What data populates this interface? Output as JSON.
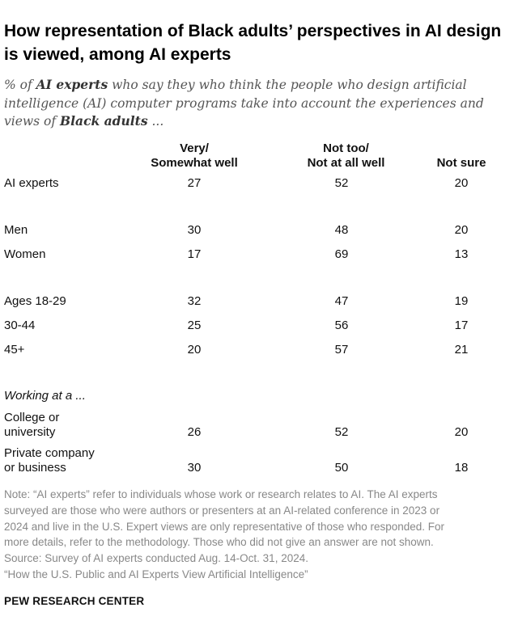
{
  "title": "How representation of Black adults’ perspectives in AI design is viewed, among AI experts",
  "subtitle": {
    "pre": "% of ",
    "bold1": "AI experts",
    "mid": " who say they who think the people who design artificial intelligence (AI) computer programs take into account the experiences and views of ",
    "bold2": "Black adults",
    "post": " ..."
  },
  "columns": {
    "col1_line1": "Very/",
    "col1_line2": "Somewhat well",
    "col2_line1": "Not too/",
    "col2_line2": "Not at all well",
    "col3": "Not sure"
  },
  "rows": {
    "all": {
      "label": "AI experts",
      "values": [
        "27",
        "52",
        "20"
      ]
    },
    "men": {
      "label": "Men",
      "values": [
        "30",
        "48",
        "20"
      ]
    },
    "women": {
      "label": "Women",
      "values": [
        "17",
        "69",
        "13"
      ]
    },
    "ages_18_29": {
      "label": "Ages 18-29",
      "values": [
        "32",
        "47",
        "19"
      ]
    },
    "ages_30_44": {
      "label": "30-44",
      "values": [
        "25",
        "56",
        "17"
      ]
    },
    "ages_45plus": {
      "label": "45+",
      "values": [
        "20",
        "57",
        "21"
      ]
    },
    "college": {
      "label_line1": "College or",
      "label_line2": "university",
      "values": [
        "26",
        "52",
        "20"
      ]
    },
    "private": {
      "label_line1": "Private company",
      "label_line2": "or business",
      "values": [
        "30",
        "50",
        "18"
      ]
    }
  },
  "section_working": "Working at a ...",
  "note_lines": [
    "Note: “AI experts” refer to individuals whose work or research relates to AI. The AI experts",
    "surveyed are those who were authors or presenters at an AI-related conference in 2023 or",
    "2024 and live in the U.S. Expert views are only representative of those who responded. For",
    "more details, refer to the methodology. Those who did not give an answer are not shown.",
    "Source: Survey of AI experts conducted Aug. 14-Oct. 31, 2024.",
    "“How the U.S. Public and AI Experts View Artificial Intelligence”"
  ],
  "footer": "PEW RESEARCH CENTER",
  "chart_data": {
    "type": "table",
    "title": "How representation of Black adults’ perspectives in AI design is viewed, among AI experts",
    "columns": [
      "Very/Somewhat well",
      "Not too/Not at all well",
      "Not sure"
    ],
    "series": [
      {
        "name": "AI experts",
        "values": [
          27,
          52,
          20
        ]
      },
      {
        "name": "Men",
        "values": [
          30,
          48,
          20
        ]
      },
      {
        "name": "Women",
        "values": [
          17,
          69,
          13
        ]
      },
      {
        "name": "Ages 18-29",
        "values": [
          32,
          47,
          19
        ]
      },
      {
        "name": "30-44",
        "values": [
          25,
          56,
          17
        ]
      },
      {
        "name": "45+",
        "values": [
          20,
          57,
          21
        ]
      },
      {
        "name": "College or university",
        "values": [
          26,
          52,
          20
        ]
      },
      {
        "name": "Private company or business",
        "values": [
          30,
          50,
          18
        ]
      }
    ]
  }
}
